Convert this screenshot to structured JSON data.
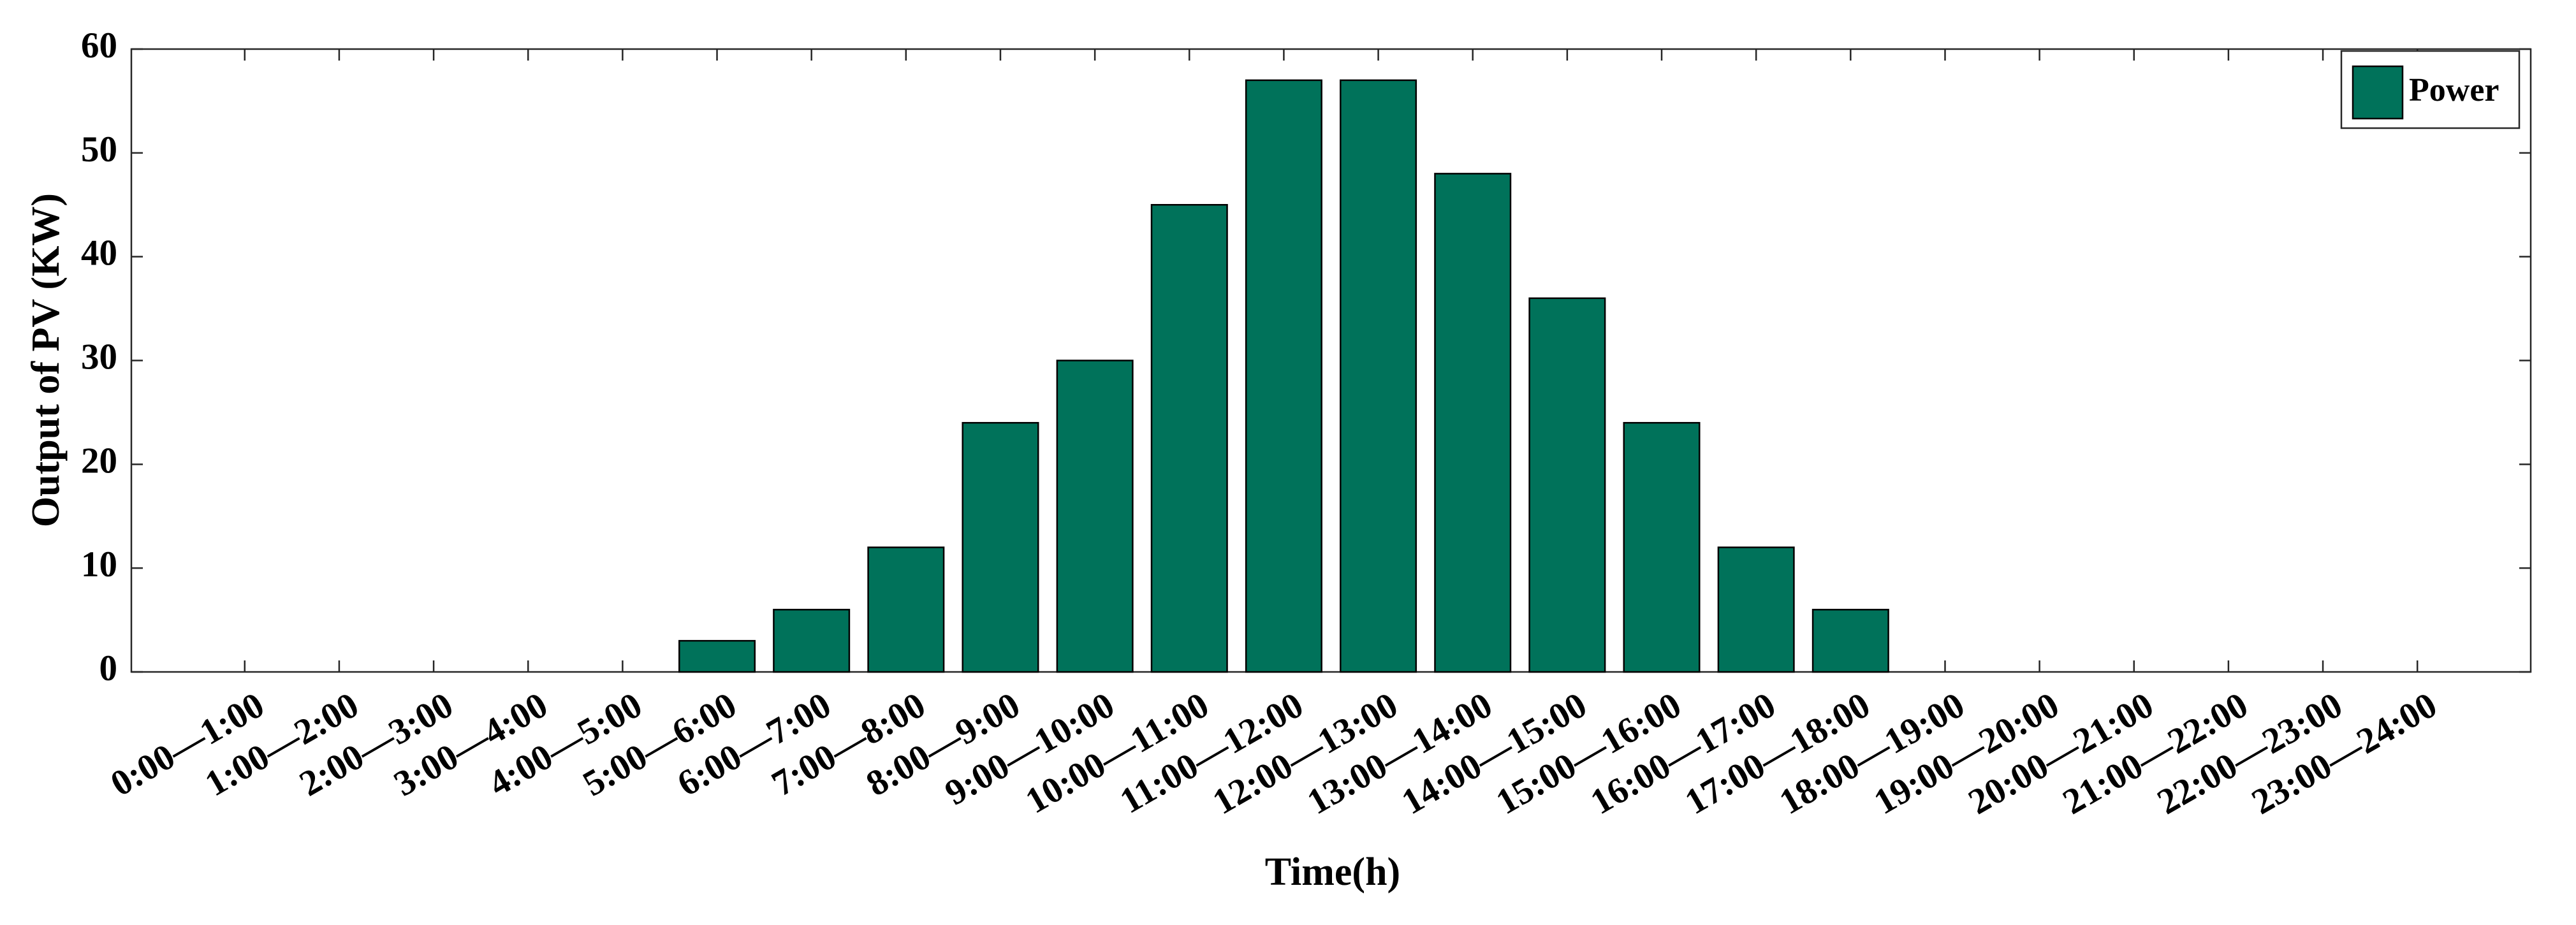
{
  "chart_data": {
    "type": "bar",
    "x_label": "Time(h)",
    "y_label": "Output of PV (KW)",
    "categories": [
      "0:00—1:00",
      "1:00—2:00",
      "2:00—3:00",
      "3:00—4:00",
      "4:00—5:00",
      "5:00—6:00",
      "6:00—7:00",
      "7:00—8:00",
      "8:00—9:00",
      "9:00—10:00",
      "10:00—11:00",
      "11:00—12:00",
      "12:00—13:00",
      "13:00—14:00",
      "14:00—15:00",
      "15:00—16:00",
      "16:00—17:00",
      "17:00—18:00",
      "18:00—19:00",
      "19:00—20:00",
      "20:00—21:00",
      "21:00—22:00",
      "22:00—23:00",
      "23:00—24:00"
    ],
    "series": [
      {
        "name": "Power",
        "color": "#00725a",
        "values": [
          0,
          0,
          0,
          0,
          0,
          3,
          6,
          12,
          24,
          30,
          45,
          57,
          57,
          48,
          36,
          24,
          12,
          6,
          0,
          0,
          0,
          0,
          0,
          0
        ]
      }
    ],
    "ylim": [
      0,
      60
    ],
    "yticks": [
      0,
      10,
      20,
      30,
      40,
      50,
      60
    ],
    "legend": "upper right",
    "grid": false
  }
}
